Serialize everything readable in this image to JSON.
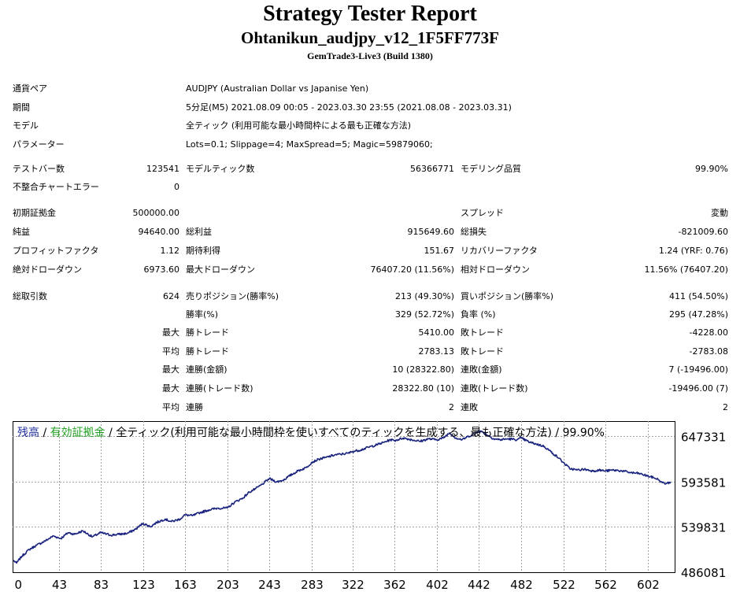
{
  "report": {
    "title": "Strategy Tester Report",
    "expert": "Ohtanikun_audjpy_v12_1F5FF773F",
    "server": "GemTrade3-Live3 (Build 1380)"
  },
  "info": [
    {
      "label": "通貨ペア",
      "value": "AUDJPY (Australian Dollar vs Japanise Yen)"
    },
    {
      "label": "期間",
      "value": "5分足(M5) 2021.08.09 00:05 - 2023.03.30 23:55 (2021.08.08 - 2023.03.31)"
    },
    {
      "label": "モデル",
      "value": "全ティック (利用可能な最小時間枠による最も正確な方法)"
    },
    {
      "label": "パラメーター",
      "value": "Lots=0.1; Slippage=4; MaxSpread=5; Magic=59879060;"
    }
  ],
  "stats_rows": [
    [
      {
        "label": "テストバー数",
        "value": "123541"
      },
      {
        "label": "モデルティック数",
        "value": "56366771"
      },
      {
        "label": "モデリング品質",
        "value": "99.90%"
      }
    ],
    [
      {
        "label": "不整合チャートエラー",
        "value": "0"
      }
    ],
    [
      {
        "label": "初期証拠金",
        "value": "500000.00"
      },
      {
        "label": "",
        "value": ""
      },
      {
        "label": "スプレッド",
        "value": "変動"
      }
    ],
    [
      {
        "label": "純益",
        "value": "94640.00"
      },
      {
        "label": "総利益",
        "value": "915649.60"
      },
      {
        "label": "総損失",
        "value": "-821009.60"
      }
    ],
    [
      {
        "label": "プロフィットファクタ",
        "value": "1.12"
      },
      {
        "label": "期待利得",
        "value": "151.67"
      },
      {
        "label": "リカバリーファクタ",
        "value": "1.24 (YRF: 0.76)"
      }
    ],
    [
      {
        "label": "絶対ドローダウン",
        "value": "6973.60"
      },
      {
        "label": "最大ドローダウン",
        "value": "76407.20 (11.56%)"
      },
      {
        "label": "相対ドローダウン",
        "value": "11.56% (76407.20)"
      }
    ]
  ],
  "trades": {
    "total_label": "総取引数",
    "total_value": "624",
    "rows": [
      {
        "prefix": "",
        "l1": "売りポジション(勝率%)",
        "v1": "213 (49.30%)",
        "l2": "買いポジション(勝率%)",
        "v2": "411 (54.50%)"
      },
      {
        "prefix": "",
        "l1": "勝率(%)",
        "v1": "329 (52.72%)",
        "l2": "負率 (%)",
        "v2": "295 (47.28%)"
      },
      {
        "prefix": "最大",
        "l1": "勝トレード",
        "v1": "5410.00",
        "l2": "敗トレード",
        "v2": "-4228.00"
      },
      {
        "prefix": "平均",
        "l1": "勝トレード",
        "v1": "2783.13",
        "l2": "敗トレード",
        "v2": "-2783.08"
      },
      {
        "prefix": "最大",
        "l1": "連勝(金額)",
        "v1": "10 (28322.80)",
        "l2": "連敗(金額)",
        "v2": "7 (-19496.00)"
      },
      {
        "prefix": "最大",
        "l1": "連勝(トレード数)",
        "v1": "28322.80 (10)",
        "l2": "連敗(トレード数)",
        "v2": "-19496.00 (7)"
      },
      {
        "prefix": "平均",
        "l1": "連勝",
        "v1": "2",
        "l2": "連敗",
        "v2": "2"
      }
    ]
  },
  "chart_legend": {
    "balance": "残高",
    "equity": "有効証拠金",
    "sep": " / ",
    "model": "全ティック(利用可能な最小時間枠を使いすべてのティックを生成する、最も正確な方法)",
    "quality": "99.90%"
  },
  "colors": {
    "balance_line": "#1a237e",
    "grid": "#a0a0a0"
  },
  "chart_data": {
    "type": "line",
    "title": "",
    "xlabel": "",
    "ylabel": "",
    "x_ticks": [
      "0",
      "43",
      "83",
      "123",
      "163",
      "203",
      "243",
      "283",
      "322",
      "362",
      "402",
      "442",
      "482",
      "522",
      "562",
      "602"
    ],
    "y_ticks": [
      "647331",
      "593581",
      "539831",
      "486081"
    ],
    "xlim": [
      0,
      624
    ],
    "ylim": [
      486081,
      665000
    ],
    "grid": true,
    "series": [
      {
        "values": [
          [
            0,
            500000
          ],
          [
            3,
            497000
          ],
          [
            8,
            505000
          ],
          [
            15,
            513000
          ],
          [
            22,
            518000
          ],
          [
            30,
            523000
          ],
          [
            38,
            529000
          ],
          [
            45,
            526000
          ],
          [
            52,
            533000
          ],
          [
            58,
            531000
          ],
          [
            66,
            535000
          ],
          [
            75,
            528000
          ],
          [
            83,
            533000
          ],
          [
            92,
            530000
          ],
          [
            100,
            531000
          ],
          [
            108,
            532000
          ],
          [
            116,
            537000
          ],
          [
            123,
            544000
          ],
          [
            130,
            540000
          ],
          [
            136,
            545000
          ],
          [
            144,
            549000
          ],
          [
            150,
            546000
          ],
          [
            158,
            549000
          ],
          [
            163,
            554000
          ],
          [
            170,
            553000
          ],
          [
            178,
            557000
          ],
          [
            186,
            560000
          ],
          [
            194,
            562000
          ],
          [
            203,
            562000
          ],
          [
            210,
            569000
          ],
          [
            218,
            574000
          ],
          [
            224,
            581000
          ],
          [
            230,
            585000
          ],
          [
            236,
            590000
          ],
          [
            243,
            597000
          ],
          [
            250,
            593000
          ],
          [
            256,
            595000
          ],
          [
            262,
            600000
          ],
          [
            270,
            606000
          ],
          [
            278,
            610000
          ],
          [
            283,
            616000
          ],
          [
            290,
            620000
          ],
          [
            297,
            622000
          ],
          [
            305,
            625000
          ],
          [
            312,
            626000
          ],
          [
            318,
            627000
          ],
          [
            322,
            629000
          ],
          [
            330,
            631000
          ],
          [
            337,
            634000
          ],
          [
            345,
            637000
          ],
          [
            352,
            640000
          ],
          [
            358,
            643000
          ],
          [
            362,
            642000
          ],
          [
            370,
            645000
          ],
          [
            378,
            643000
          ],
          [
            386,
            641000
          ],
          [
            394,
            644000
          ],
          [
            402,
            643000
          ],
          [
            408,
            645000
          ],
          [
            414,
            651000
          ],
          [
            420,
            645000
          ],
          [
            426,
            643000
          ],
          [
            432,
            647000
          ],
          [
            438,
            650000
          ],
          [
            442,
            654000
          ],
          [
            448,
            650000
          ],
          [
            456,
            644000
          ],
          [
            462,
            643000
          ],
          [
            470,
            644000
          ],
          [
            478,
            643000
          ],
          [
            482,
            645000
          ],
          [
            490,
            640000
          ],
          [
            496,
            638000
          ],
          [
            504,
            635000
          ],
          [
            512,
            627000
          ],
          [
            518,
            621000
          ],
          [
            522,
            616000
          ],
          [
            528,
            609000
          ],
          [
            535,
            607000
          ],
          [
            542,
            608000
          ],
          [
            550,
            606000
          ],
          [
            556,
            607000
          ],
          [
            562,
            606000
          ],
          [
            570,
            607000
          ],
          [
            578,
            606000
          ],
          [
            586,
            604000
          ],
          [
            594,
            603000
          ],
          [
            602,
            600000
          ],
          [
            608,
            598000
          ],
          [
            612,
            596000
          ],
          [
            616,
            592000
          ],
          [
            620,
            591000
          ],
          [
            624,
            593000
          ]
        ]
      }
    ]
  }
}
